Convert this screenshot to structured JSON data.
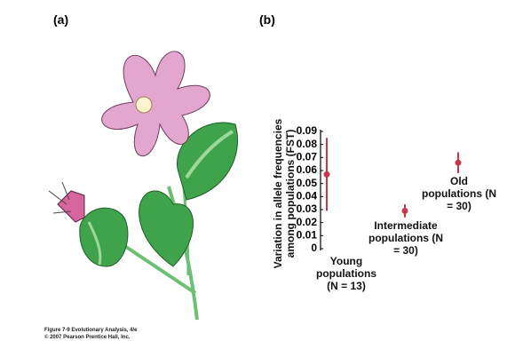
{
  "panel_labels": [
    "(a)",
    "(b)"
  ],
  "caption": [
    "Figure 7-9  Evolutionary Analysis, 4/e",
    "© 2007 Pearson Prentice Hall, Inc."
  ],
  "chart_data": {
    "type": "errorbar",
    "ylabel": "Variation in allele frequencies among populations (FST)",
    "categories": [
      "Young populations (N = 13)",
      "Intermediate populations (N = 30)",
      "Old populations (N = 30)"
    ],
    "values": [
      0.057,
      0.029,
      0.066
    ],
    "errors": [
      0.028,
      0.005,
      0.008
    ],
    "color": "#c8374a",
    "ylim": [
      0,
      0.09
    ],
    "yticks": [
      0,
      0.01,
      0.02,
      0.03,
      0.04,
      0.05,
      0.06,
      0.07,
      0.08,
      0.09
    ]
  }
}
